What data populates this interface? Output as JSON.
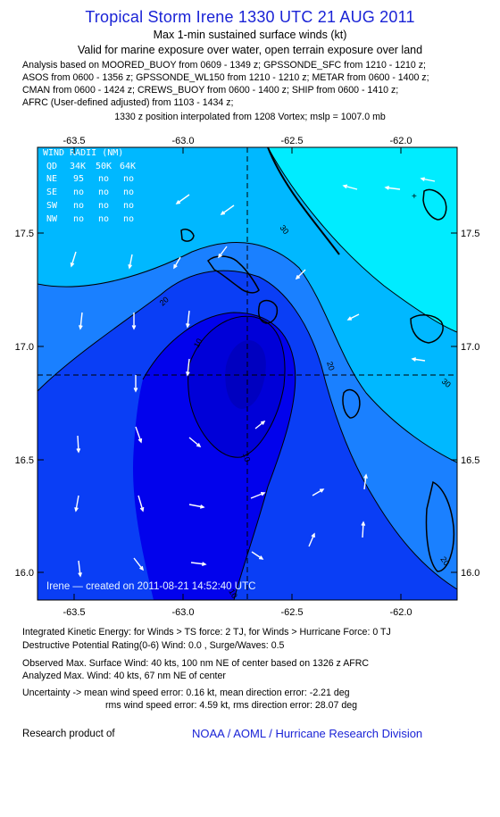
{
  "header": {
    "title": "Tropical Storm Irene 1330 UTC 21 AUG 2011",
    "subtitle1": "Max 1-min sustained surface winds (kt)",
    "subtitle2": "Valid for marine exposure over water, open terrain exposure over land"
  },
  "analysis_lines": [
    "Analysis based on MOORED_BUOY from 0609 - 1349 z; GPSSONDE_SFC from 1210 - 1210 z;",
    "ASOS from 0600 - 1356 z; GPSSONDE_WL150 from 1210 - 1210 z; METAR from 0600 - 1400 z;",
    "CMAN from 0600 - 1424 z; CREWS_BUOY from 0600 - 1400 z; SHIP from 0600 - 1410 z;",
    "AFRC (User-defined adjusted) from 1103 - 1434 z;"
  ],
  "position_line": "1330 z position interpolated from 1208 Vortex; mslp = 1007.0 mb",
  "map": {
    "lon_ticks": [
      "-63.5",
      "-63.0",
      "-62.5",
      "-62.0"
    ],
    "lat_ticks": [
      "17.5",
      "17.0",
      "16.5",
      "16.0"
    ],
    "contour_labels": [
      "30",
      "20",
      "10",
      "20",
      "30",
      "20",
      "10",
      "10"
    ],
    "wind_radii": {
      "title": "WIND RADII (NM)",
      "header": [
        "QD",
        "34K",
        "50K",
        "64K"
      ],
      "rows": [
        [
          "NE",
          "95",
          "no",
          "no"
        ],
        [
          "SE",
          "no",
          "no",
          "no"
        ],
        [
          "SW",
          "no",
          "no",
          "no"
        ],
        [
          "NW",
          "no",
          "no",
          "no"
        ]
      ]
    },
    "created": "Irene — created on 2011-08-21 14:52:40 UTC",
    "colors": {
      "band_lt10": "#0202ec",
      "band_10_20": "#0a3ef5",
      "band_20_30": "#1a80ff",
      "band_30_40": "#00b8ff",
      "band_gt40": "#00ecff",
      "arrow": "#ffffff",
      "land_outline": "#000000"
    }
  },
  "footer": {
    "lines": [
      "Integrated Kinetic Energy:  for Winds > TS force: 2 TJ,  for Winds > Hurricane Force: 0 TJ",
      "Destructive Potential Rating(0-6)   Wind: 0.0 , Surge/Waves: 0.5",
      "Observed Max. Surface Wind: 40 kts, 100 nm NE of center based on 1326 z AFRC",
      "Analyzed Max. Wind: 40 kts, 67 nm NE of center",
      "Uncertainty -> mean wind speed error: 0.16 kt,   mean direction error:  -2.21 deg",
      "rms wind speed error: 4.59 kt,  rms direction error: 28.07 deg"
    ],
    "research": "Research product of",
    "org": "NOAA / AOML / Hurricane Research Division"
  }
}
